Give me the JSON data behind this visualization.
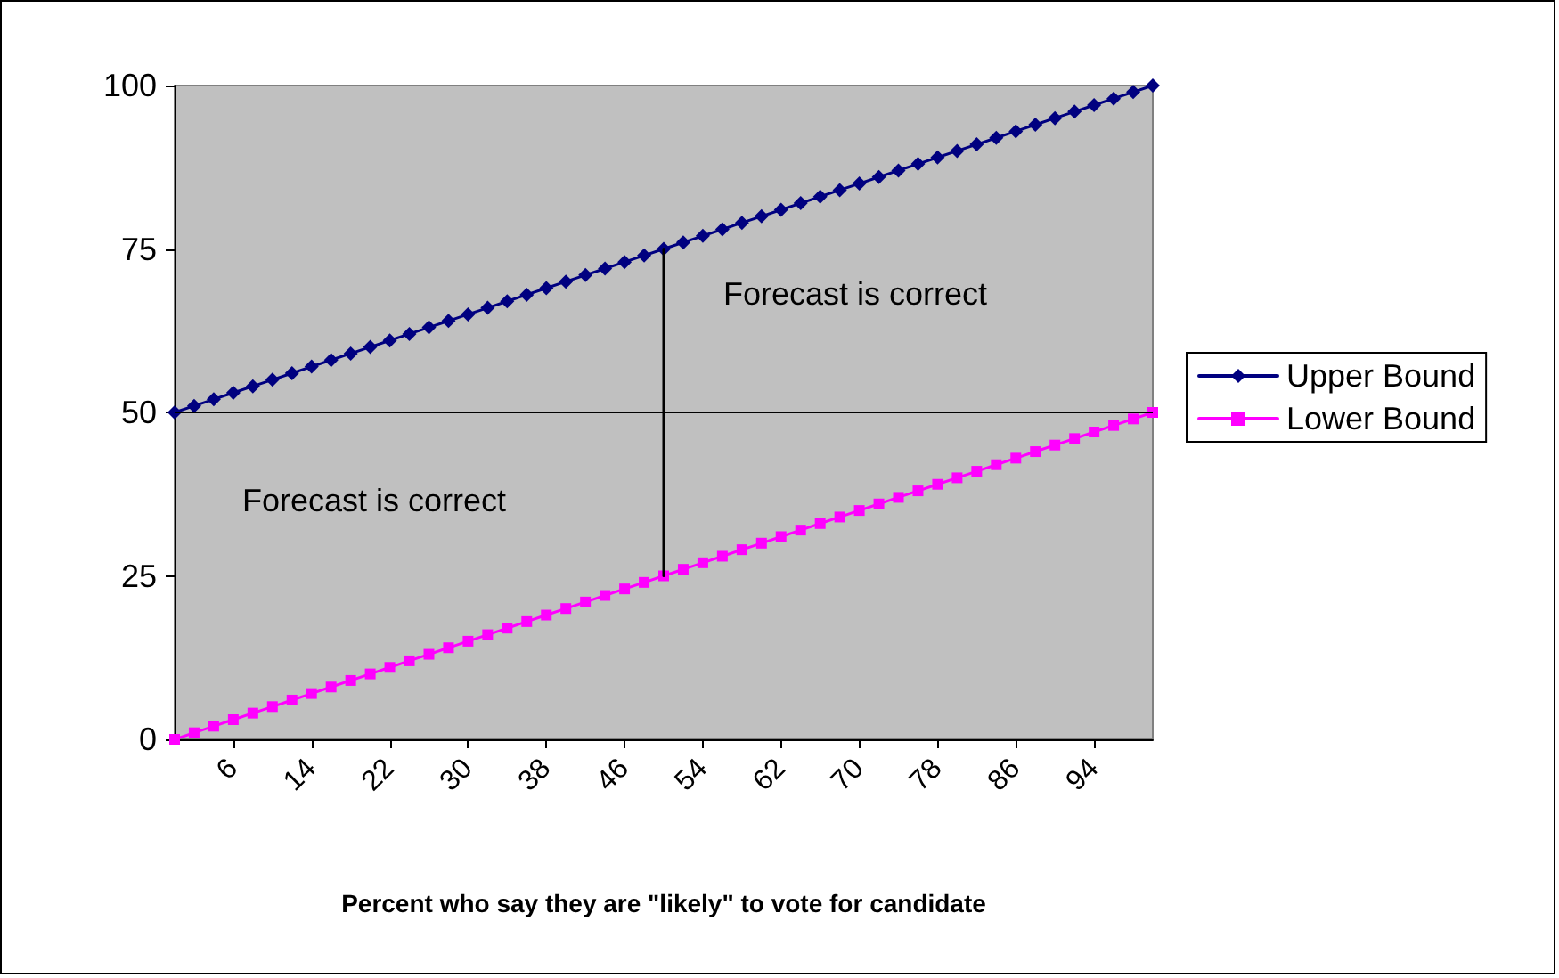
{
  "chart_data": {
    "type": "line",
    "xlabel": "Percent who say they are \"likely\" to vote for candidate",
    "x": [
      0,
      2,
      4,
      6,
      8,
      10,
      12,
      14,
      16,
      18,
      20,
      22,
      24,
      26,
      28,
      30,
      32,
      34,
      36,
      38,
      40,
      42,
      44,
      46,
      48,
      50,
      52,
      54,
      56,
      58,
      60,
      62,
      64,
      66,
      68,
      70,
      72,
      74,
      76,
      78,
      80,
      82,
      84,
      86,
      88,
      90,
      92,
      94,
      96,
      98,
      100
    ],
    "series": [
      {
        "name": "Upper Bound",
        "color": "#000080",
        "marker": "diamond",
        "values": [
          50,
          51,
          52,
          53,
          54,
          55,
          56,
          57,
          58,
          59,
          60,
          61,
          62,
          63,
          64,
          65,
          66,
          67,
          68,
          69,
          70,
          71,
          72,
          73,
          74,
          75,
          76,
          77,
          78,
          79,
          80,
          81,
          82,
          83,
          84,
          85,
          86,
          87,
          88,
          89,
          90,
          91,
          92,
          93,
          94,
          95,
          96,
          97,
          98,
          99,
          100
        ]
      },
      {
        "name": "Lower Bound",
        "color": "#ff00ff",
        "marker": "square",
        "values": [
          0,
          1,
          2,
          3,
          4,
          5,
          6,
          7,
          8,
          9,
          10,
          11,
          12,
          13,
          14,
          15,
          16,
          17,
          18,
          19,
          20,
          21,
          22,
          23,
          24,
          25,
          26,
          27,
          28,
          29,
          30,
          31,
          32,
          33,
          34,
          35,
          36,
          37,
          38,
          39,
          40,
          41,
          42,
          43,
          44,
          45,
          46,
          47,
          48,
          49,
          50
        ]
      },
      {
        "color": "#000000",
        "marker": "none",
        "x": [
          50,
          50
        ],
        "values": [
          25,
          75
        ]
      }
    ],
    "ref_lines": [
      {
        "axis": "y",
        "value": 50,
        "color": "#000000"
      }
    ],
    "annotations": [
      "Forecast is correct",
      "Forecast is correct"
    ],
    "xlim": [
      0,
      100
    ],
    "xticks": [
      6,
      14,
      22,
      30,
      38,
      46,
      54,
      62,
      70,
      78,
      86,
      94
    ],
    "ylim": [
      0,
      100
    ],
    "yticks": [
      0,
      25,
      50,
      75,
      100
    ],
    "grid": false,
    "legend": "right"
  }
}
